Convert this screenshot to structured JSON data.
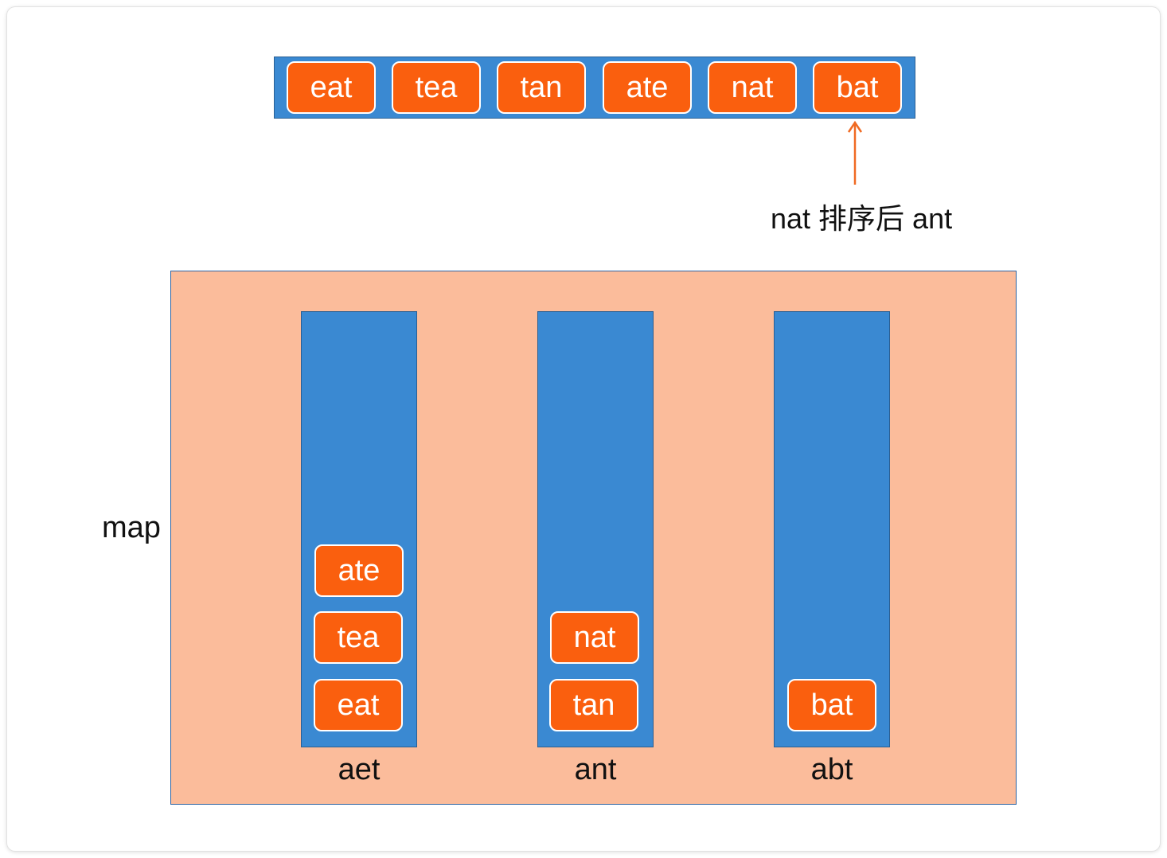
{
  "array": [
    "eat",
    "tea",
    "tan",
    "ate",
    "nat",
    "bat"
  ],
  "note": "nat 排序后 ant",
  "map_label": "map",
  "buckets": [
    {
      "key": "aet",
      "items": [
        "ate",
        "tea",
        "eat"
      ]
    },
    {
      "key": "ant",
      "items": [
        "nat",
        "tan"
      ]
    },
    {
      "key": "abt",
      "items": [
        "bat"
      ]
    }
  ],
  "colors": {
    "chip_fill": "#fa5f0e",
    "bucket_fill": "#3a89d2",
    "map_fill": "#fbbc9b",
    "arrow": "#f06a22"
  }
}
